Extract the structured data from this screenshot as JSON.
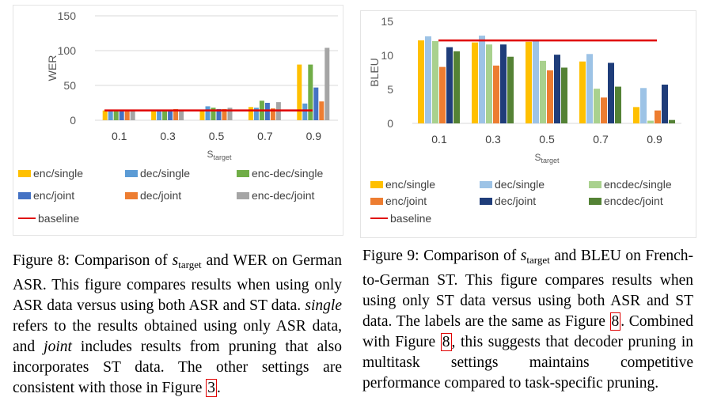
{
  "colors": {
    "enc_single": "#ffc000",
    "dec_single_left": "#5b9bd5",
    "encdec_single_left": "#70ad47",
    "enc_joint": "#4472c4",
    "dec_joint": "#ed7d31",
    "encdec_joint_left": "#a5a5a5",
    "dec_single_right": "#9dc3e6",
    "encdec_single_right": "#a9d18e",
    "enc_joint_right": "#ed7d31",
    "dec_joint_right": "#1f3d7a",
    "encdec_joint_right": "#548235",
    "baseline": "#e00000"
  },
  "chart_data": [
    {
      "type": "bar",
      "categories": [
        "0.1",
        "0.3",
        "0.5",
        "0.7",
        "0.9"
      ],
      "ylabel": "WER",
      "xlabel": "S",
      "xlabel_sub": "target",
      "ylim": [
        0,
        150
      ],
      "yticks": [
        "0",
        "50",
        "100",
        "150"
      ],
      "grid": true,
      "legend_position": "bottom",
      "series": [
        {
          "name": "enc/single",
          "values": [
            14,
            14,
            14,
            19,
            80
          ]
        },
        {
          "name": "dec/single",
          "values": [
            15,
            15,
            20,
            18,
            24
          ]
        },
        {
          "name": "enc-dec/single",
          "values": [
            14,
            14,
            18,
            28,
            80
          ]
        },
        {
          "name": "enc/joint",
          "values": [
            15,
            15,
            16,
            25,
            47
          ]
        },
        {
          "name": "dec/joint",
          "values": [
            15,
            16,
            16,
            17,
            27
          ]
        },
        {
          "name": "enc-dec/joint",
          "values": [
            14,
            15,
            18,
            26,
            104
          ]
        }
      ],
      "baseline": {
        "name": "baseline",
        "value": 14
      }
    },
    {
      "type": "bar",
      "categories": [
        "0.1",
        "0.3",
        "0.5",
        "0.7",
        "0.9"
      ],
      "ylabel": "BLEU",
      "xlabel": "S",
      "xlabel_sub": "target",
      "ylim": [
        0,
        15
      ],
      "yticks": [
        "0",
        "5",
        "10",
        "15"
      ],
      "grid": false,
      "legend_position": "bottom",
      "series": [
        {
          "name": "enc/single",
          "values": [
            12.2,
            11.9,
            12.0,
            9.1,
            2.4
          ]
        },
        {
          "name": "dec/single",
          "values": [
            12.8,
            12.9,
            12.1,
            10.2,
            5.2
          ]
        },
        {
          "name": "encdec/single",
          "values": [
            12.1,
            11.6,
            9.2,
            5.1,
            0.4
          ]
        },
        {
          "name": "enc/joint",
          "values": [
            8.3,
            8.5,
            7.8,
            3.8,
            1.9
          ]
        },
        {
          "name": "dec/joint",
          "values": [
            11.2,
            11.6,
            10.1,
            8.9,
            5.7
          ]
        },
        {
          "name": "encdec/joint",
          "values": [
            10.6,
            9.8,
            8.2,
            5.4,
            0.5
          ]
        }
      ],
      "baseline": {
        "name": "baseline",
        "value": 12.2
      }
    }
  ],
  "captions": {
    "left": {
      "p1": "Figure 8: Comparison of ",
      "s": "s",
      "sub": "target",
      "p2": " and WER on German ASR. This figure compares results when using only ASR data versus using both ASR and ST data. ",
      "single": "single",
      "p3": " refers to the results obtained using only ASR data, and ",
      "joint": "joint",
      "p4": " includes results from pruning that also incorporates ST data. The other settings are consistent with those in Figure ",
      "ref": "3",
      "p5": "."
    },
    "right": {
      "p1": "Figure 9: Comparison of ",
      "s": "s",
      "sub": "target",
      "p2": " and BLEU on French-to-German ST. This figure compares results when using only ST data versus using both ASR and ST data. The labels are the same as Figure ",
      "ref1": "8",
      "p3": ". Combined with Figure ",
      "ref2": "8",
      "p4": ", this suggests that decoder pruning in multitask settings maintains competitive performance compared to task-specific pruning."
    }
  }
}
